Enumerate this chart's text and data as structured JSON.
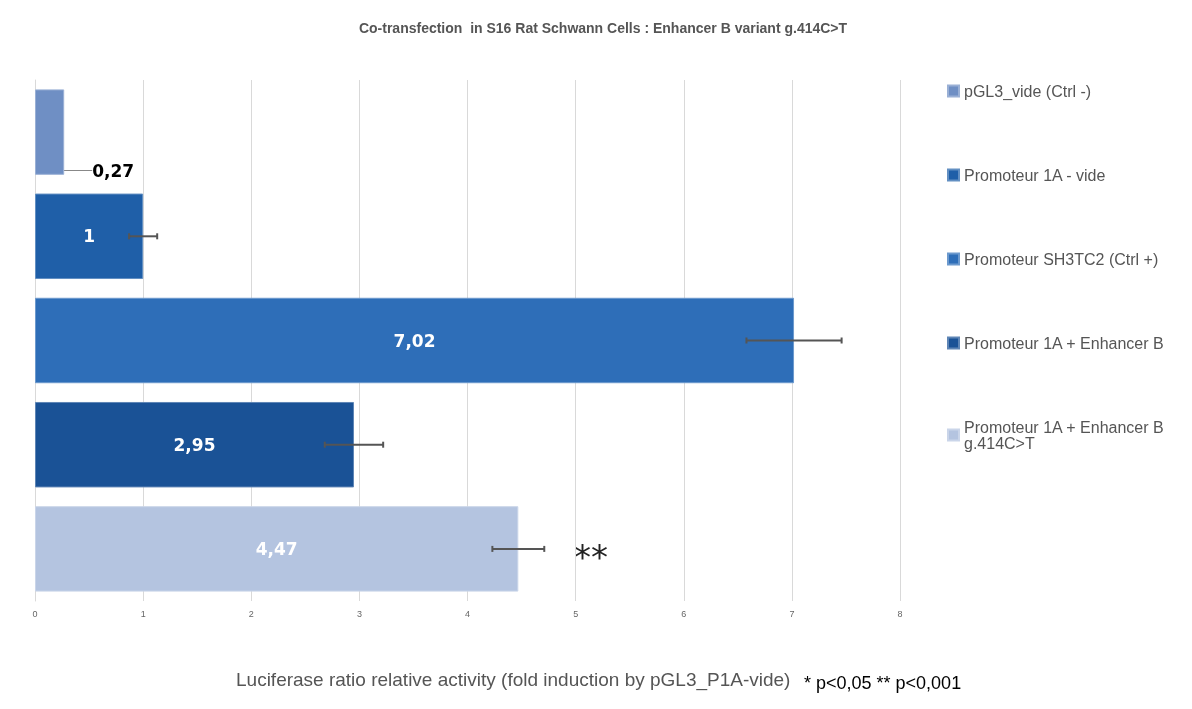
{
  "chart_data": {
    "type": "bar",
    "orientation": "horizontal",
    "title": "Co-transfection  in S16 Rat Schwann Cells : Enhancer B variant g.414C>T",
    "xlabel": "Luciferase ratio relative activity (fold induction by pGL3_P1A-vide)",
    "categories": [
      null,
      null,
      null,
      null,
      null
    ],
    "series": [
      {
        "name": "pGL3_vide (Ctrl -)",
        "color": "#6f8fc4",
        "values": [
          0.27,
          null,
          null,
          null,
          null
        ],
        "value_labels": [
          "0,27",
          null,
          null,
          null,
          null
        ],
        "errors": [
          null,
          null,
          null,
          null,
          null
        ]
      },
      {
        "name": "Promoteur 1A - vide",
        "color": "#1f5fa8",
        "values": [
          null,
          1,
          null,
          null,
          null
        ],
        "value_labels": [
          null,
          "1",
          null,
          null,
          null
        ],
        "errors": [
          null,
          0.13,
          null,
          null,
          null
        ]
      },
      {
        "name": "Promoteur SH3TC2 (Ctrl +)",
        "color": "#2e6eb8",
        "values": [
          null,
          null,
          7.02,
          null,
          null
        ],
        "value_labels": [
          null,
          null,
          "7,02",
          null,
          null
        ],
        "errors": [
          null,
          null,
          0.44,
          null,
          null
        ]
      },
      {
        "name": "Promoteur 1A + Enhancer B",
        "color": "#1a5296",
        "values": [
          null,
          null,
          null,
          2.95,
          null
        ],
        "value_labels": [
          null,
          null,
          null,
          "2,95",
          null
        ],
        "errors": [
          null,
          null,
          null,
          0.27,
          null
        ]
      },
      {
        "name": "Promoteur 1A + Enhancer B g.414C>T",
        "color": "#b4c4e0",
        "values": [
          null,
          null,
          null,
          null,
          4.47
        ],
        "value_labels": [
          null,
          null,
          null,
          null,
          "4,47"
        ],
        "errors": [
          null,
          null,
          null,
          null,
          0.24
        ]
      }
    ],
    "xlim": [
      0,
      8
    ],
    "xticks": [
      0,
      1,
      2,
      3,
      4,
      5,
      6,
      7,
      8
    ],
    "grid": "x",
    "legend": "right",
    "annotations": [
      "**",
      "* p<0,05 ** p<0,001"
    ]
  }
}
